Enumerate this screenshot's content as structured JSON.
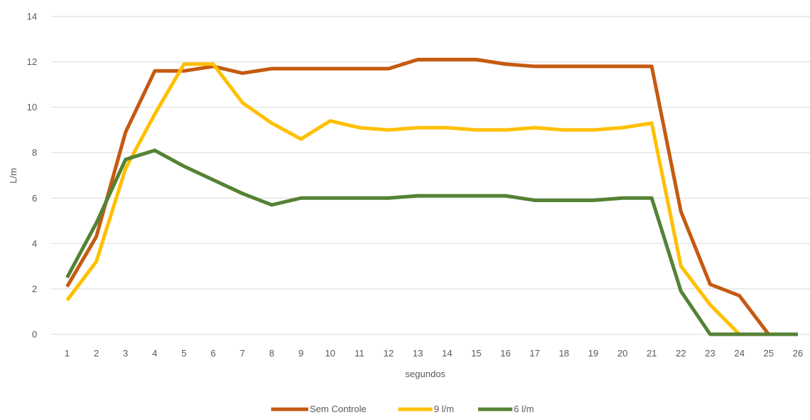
{
  "chart_data": {
    "type": "line",
    "title": "",
    "xlabel": "segundos",
    "ylabel": "L/m",
    "ylim": [
      0,
      14
    ],
    "yticks": [
      0,
      2,
      4,
      6,
      8,
      10,
      12,
      14
    ],
    "grid": true,
    "legend_position": "bottom",
    "x": [
      1,
      2,
      3,
      4,
      5,
      6,
      7,
      8,
      9,
      10,
      11,
      12,
      13,
      14,
      15,
      16,
      17,
      18,
      19,
      20,
      21,
      22,
      23,
      24,
      25,
      26
    ],
    "series": [
      {
        "name": "Sem Controle",
        "color": "#C55A11",
        "values": [
          2.1,
          4.3,
          8.9,
          11.6,
          11.6,
          11.8,
          11.5,
          11.7,
          11.7,
          11.7,
          11.7,
          11.7,
          12.1,
          12.1,
          12.1,
          11.9,
          11.8,
          11.8,
          11.8,
          11.8,
          11.8,
          5.4,
          2.2,
          1.7,
          0.0,
          0.0
        ]
      },
      {
        "name": "9 l/m",
        "color": "#FFC000",
        "values": [
          1.5,
          3.2,
          7.3,
          9.7,
          11.9,
          11.9,
          10.2,
          9.3,
          8.6,
          9.4,
          9.1,
          9.0,
          9.1,
          9.1,
          9.0,
          9.0,
          9.1,
          9.0,
          9.0,
          9.1,
          9.3,
          3.0,
          1.3,
          0.0,
          null,
          null
        ]
      },
      {
        "name": "6 l/m",
        "color": "#548235",
        "values": [
          2.5,
          4.9,
          7.7,
          8.1,
          7.4,
          6.8,
          6.2,
          5.7,
          6.0,
          6.0,
          6.0,
          6.0,
          6.1,
          6.1,
          6.1,
          6.1,
          5.9,
          5.9,
          5.9,
          6.0,
          6.0,
          1.9,
          0.0,
          0.0,
          0.0,
          0.0
        ]
      }
    ]
  }
}
